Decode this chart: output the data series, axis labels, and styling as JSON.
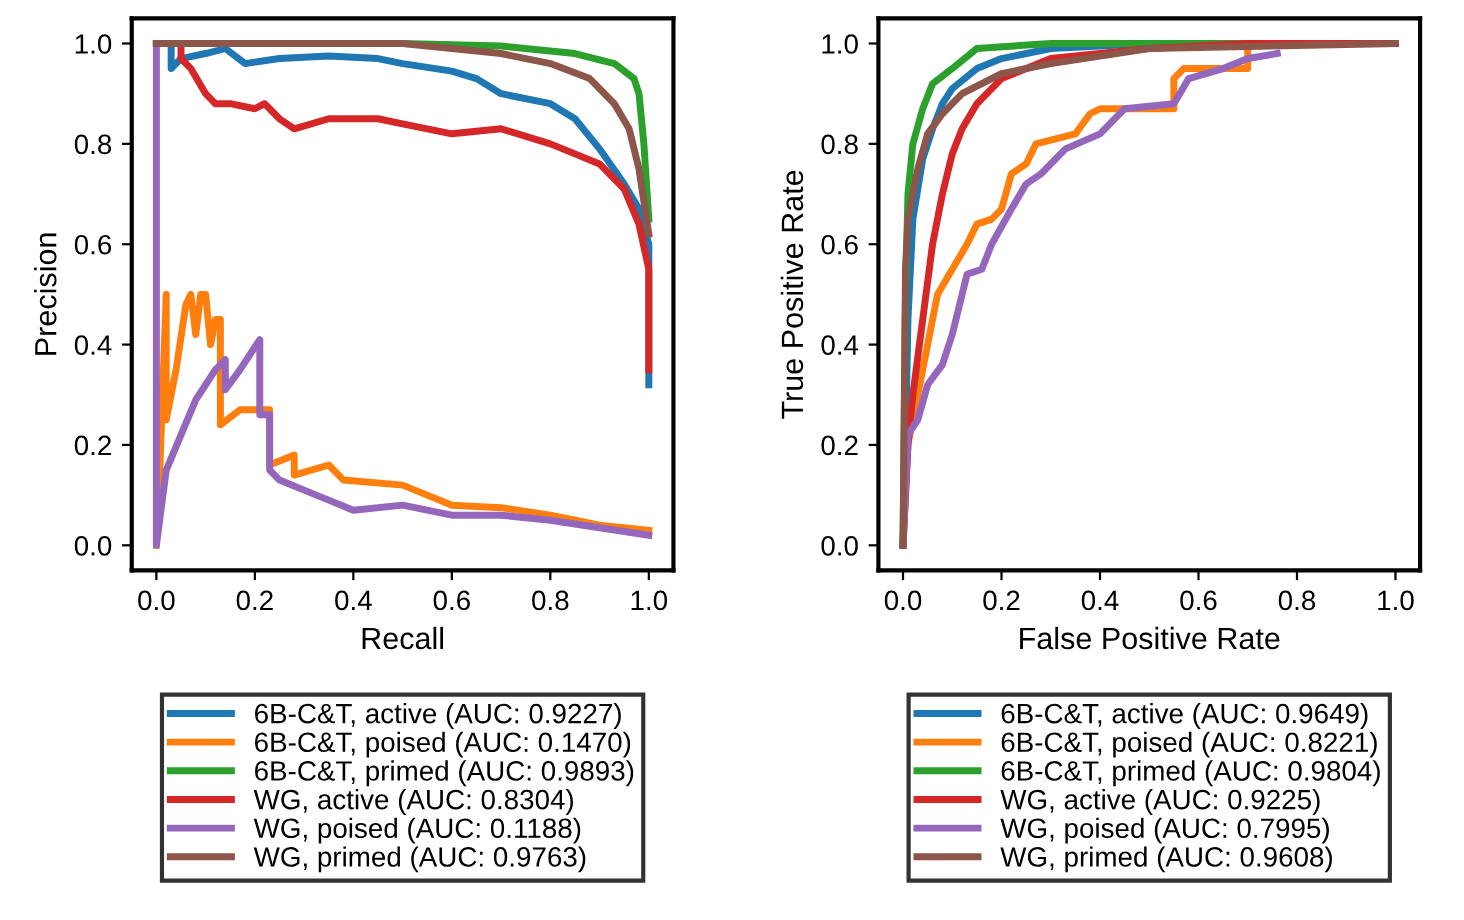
{
  "chart_data": [
    {
      "type": "line",
      "xlabel": "Recall",
      "ylabel": "Precision",
      "xlim": [
        -0.05,
        1.05
      ],
      "ylim": [
        -0.05,
        1.05
      ],
      "xticks": [
        {
          "value": 0,
          "label": "0.0"
        },
        {
          "value": 0.2,
          "label": "0.2"
        },
        {
          "value": 0.4,
          "label": "0.4"
        },
        {
          "value": 0.6,
          "label": "0.6"
        },
        {
          "value": 0.8,
          "label": "0.8"
        },
        {
          "value": 1,
          "label": "1.0"
        }
      ],
      "yticks": [
        {
          "value": 0,
          "label": "0.0"
        },
        {
          "value": 0.2,
          "label": "0.2"
        },
        {
          "value": 0.4,
          "label": "0.4"
        },
        {
          "value": 0.6,
          "label": "0.6"
        },
        {
          "value": 0.8,
          "label": "0.8"
        },
        {
          "value": 1,
          "label": "1.0"
        }
      ],
      "grid": false,
      "legend": "bottom",
      "line_style": "solid",
      "marker": "none",
      "series": [
        {
          "name": "6B-C&T, active (AUC: 0.9227)",
          "color": "#1f77b4",
          "x": [
            0,
            0.03,
            0.03,
            0.05,
            0.1,
            0.14,
            0.18,
            0.25,
            0.35,
            0.45,
            0.5,
            0.6,
            0.65,
            0.7,
            0.8,
            0.85,
            0.9,
            0.95,
            0.98,
            1.0,
            1.0
          ],
          "values": [
            1,
            1,
            0.95,
            0.97,
            0.98,
            0.99,
            0.96,
            0.97,
            0.975,
            0.97,
            0.96,
            0.945,
            0.93,
            0.9,
            0.88,
            0.85,
            0.79,
            0.72,
            0.67,
            0.6,
            0.32
          ]
        },
        {
          "name": "6B-C&T, poised (AUC: 0.1470)",
          "color": "#ff7f0e",
          "x": [
            0,
            0.005,
            0.02,
            0.02,
            0.04,
            0.06,
            0.07,
            0.08,
            0.09,
            0.1,
            0.11,
            0.12,
            0.13,
            0.13,
            0.17,
            0.2,
            0.23,
            0.23,
            0.28,
            0.28,
            0.35,
            0.38,
            0.5,
            0.55,
            0.6,
            0.7,
            0.8,
            0.9,
            1.0
          ],
          "values": [
            0,
            0.1,
            0.5,
            0.25,
            0.35,
            0.48,
            0.5,
            0.42,
            0.5,
            0.5,
            0.4,
            0.45,
            0.45,
            0.24,
            0.27,
            0.27,
            0.27,
            0.16,
            0.18,
            0.14,
            0.16,
            0.13,
            0.12,
            0.1,
            0.08,
            0.075,
            0.06,
            0.04,
            0.03
          ]
        },
        {
          "name": "6B-C&T, primed (AUC: 0.9893)",
          "color": "#2ca02c",
          "x": [
            0,
            0.5,
            0.7,
            0.85,
            0.93,
            0.97,
            0.98,
            0.99,
            1.0
          ],
          "values": [
            1,
            1,
            0.995,
            0.98,
            0.96,
            0.93,
            0.9,
            0.8,
            0.65
          ]
        },
        {
          "name": "WG, active (AUC: 0.8304)",
          "color": "#d62728",
          "x": [
            0.05,
            0.05,
            0.07,
            0.1,
            0.12,
            0.15,
            0.2,
            0.22,
            0.25,
            0.28,
            0.35,
            0.45,
            0.5,
            0.6,
            0.7,
            0.8,
            0.85,
            0.9,
            0.95,
            0.98,
            1.0,
            1.0
          ],
          "values": [
            1,
            0.97,
            0.95,
            0.9,
            0.88,
            0.88,
            0.87,
            0.88,
            0.85,
            0.83,
            0.85,
            0.85,
            0.84,
            0.82,
            0.83,
            0.8,
            0.78,
            0.76,
            0.71,
            0.64,
            0.55,
            0.35
          ]
        },
        {
          "name": "WG, poised (AUC: 0.1188)",
          "color": "#9467bd",
          "x": [
            0,
            0,
            0.02,
            0.05,
            0.08,
            0.1,
            0.12,
            0.14,
            0.14,
            0.17,
            0.21,
            0.21,
            0.23,
            0.23,
            0.25,
            0.3,
            0.35,
            0.4,
            0.5,
            0.6,
            0.7,
            0.8,
            0.9,
            1.0
          ],
          "values": [
            1,
            0,
            0.15,
            0.22,
            0.29,
            0.32,
            0.35,
            0.37,
            0.31,
            0.35,
            0.41,
            0.26,
            0.26,
            0.15,
            0.13,
            0.11,
            0.09,
            0.07,
            0.08,
            0.06,
            0.06,
            0.05,
            0.035,
            0.02
          ]
        },
        {
          "name": "WG, primed (AUC: 0.9763)",
          "color": "#8c564b",
          "x": [
            0,
            0.5,
            0.7,
            0.8,
            0.88,
            0.93,
            0.96,
            0.98,
            1.0
          ],
          "values": [
            1,
            1,
            0.98,
            0.96,
            0.93,
            0.88,
            0.83,
            0.75,
            0.62
          ]
        }
      ]
    },
    {
      "type": "line",
      "xlabel": "False Positive Rate",
      "ylabel": "True Positive Rate",
      "xlim": [
        -0.05,
        1.05
      ],
      "ylim": [
        -0.05,
        1.05
      ],
      "xticks": [
        {
          "value": 0,
          "label": "0.0"
        },
        {
          "value": 0.2,
          "label": "0.2"
        },
        {
          "value": 0.4,
          "label": "0.4"
        },
        {
          "value": 0.6,
          "label": "0.6"
        },
        {
          "value": 0.8,
          "label": "0.8"
        },
        {
          "value": 1,
          "label": "1.0"
        }
      ],
      "yticks": [
        {
          "value": 0,
          "label": "0.0"
        },
        {
          "value": 0.2,
          "label": "0.2"
        },
        {
          "value": 0.4,
          "label": "0.4"
        },
        {
          "value": 0.6,
          "label": "0.6"
        },
        {
          "value": 0.8,
          "label": "0.8"
        },
        {
          "value": 1,
          "label": "1.0"
        }
      ],
      "grid": false,
      "legend": "bottom",
      "line_style": "solid",
      "marker": "none",
      "series": [
        {
          "name": "6B-C&T, active (AUC: 0.9649)",
          "color": "#1f77b4",
          "x": [
            0,
            0.005,
            0.01,
            0.02,
            0.04,
            0.06,
            0.08,
            0.1,
            0.15,
            0.2,
            0.3,
            0.5,
            1.0
          ],
          "values": [
            0,
            0.2,
            0.45,
            0.65,
            0.77,
            0.83,
            0.88,
            0.91,
            0.95,
            0.97,
            0.99,
            1,
            1
          ]
        },
        {
          "name": "6B-C&T, poised (AUC: 0.8221)",
          "color": "#ff7f0e",
          "x": [
            0,
            0.01,
            0.03,
            0.05,
            0.07,
            0.1,
            0.13,
            0.15,
            0.18,
            0.2,
            0.22,
            0.25,
            0.27,
            0.35,
            0.38,
            0.4,
            0.55,
            0.55,
            0.57,
            0.7,
            0.7
          ],
          "values": [
            0,
            0.2,
            0.3,
            0.4,
            0.5,
            0.55,
            0.6,
            0.64,
            0.65,
            0.67,
            0.74,
            0.76,
            0.8,
            0.82,
            0.86,
            0.87,
            0.87,
            0.93,
            0.95,
            0.95,
            0.98
          ]
        },
        {
          "name": "6B-C&T, primed (AUC: 0.9804)",
          "color": "#2ca02c",
          "x": [
            0,
            0.005,
            0.01,
            0.02,
            0.04,
            0.06,
            0.1,
            0.15,
            0.3,
            1.0
          ],
          "values": [
            0,
            0.5,
            0.7,
            0.8,
            0.87,
            0.92,
            0.95,
            0.99,
            1,
            1
          ]
        },
        {
          "name": "WG, active (AUC: 0.9225)",
          "color": "#d62728",
          "x": [
            0,
            0.01,
            0.02,
            0.04,
            0.06,
            0.08,
            0.1,
            0.12,
            0.15,
            0.2,
            0.3,
            0.5,
            0.7,
            1.0
          ],
          "values": [
            0,
            0.2,
            0.3,
            0.45,
            0.6,
            0.7,
            0.78,
            0.83,
            0.88,
            0.93,
            0.97,
            0.99,
            1,
            1
          ]
        },
        {
          "name": "WG, poised (AUC: 0.7995)",
          "color": "#9467bd",
          "x": [
            0,
            0.01,
            0.03,
            0.05,
            0.08,
            0.1,
            0.12,
            0.13,
            0.16,
            0.18,
            0.22,
            0.25,
            0.28,
            0.33,
            0.4,
            0.45,
            0.55,
            0.58,
            0.65,
            0.7,
            0.76
          ],
          "values": [
            0,
            0.22,
            0.25,
            0.32,
            0.36,
            0.42,
            0.5,
            0.54,
            0.55,
            0.6,
            0.67,
            0.72,
            0.74,
            0.79,
            0.82,
            0.87,
            0.88,
            0.93,
            0.95,
            0.97,
            0.98
          ]
        },
        {
          "name": "WG, primed (AUC: 0.9608)",
          "color": "#8c564b",
          "x": [
            0,
            0.005,
            0.01,
            0.03,
            0.05,
            0.08,
            0.12,
            0.2,
            0.3,
            0.5,
            1.0
          ],
          "values": [
            0,
            0.55,
            0.65,
            0.75,
            0.82,
            0.86,
            0.9,
            0.94,
            0.96,
            0.99,
            1
          ]
        }
      ]
    }
  ]
}
